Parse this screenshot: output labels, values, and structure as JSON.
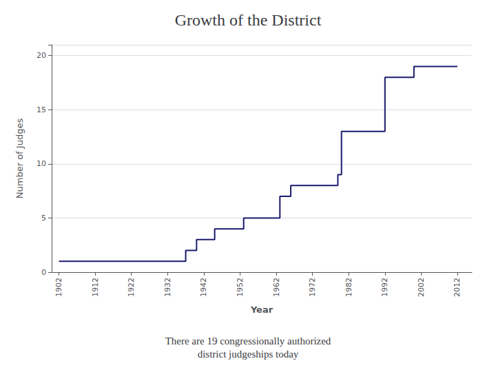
{
  "chart_data": {
    "type": "step",
    "title": "Growth of the District",
    "subtitle": "There are 19 congressionally authorized\ndistrict judgeships today",
    "xlabel": "Year",
    "ylabel": "Number of Judges",
    "x": [
      1902,
      1937,
      1940,
      1945,
      1949,
      1953,
      1961,
      1963,
      1966,
      1979,
      1980,
      1990,
      1992,
      2000,
      2012
    ],
    "values": [
      1,
      2,
      3,
      4,
      4,
      5,
      5,
      7,
      8,
      9,
      13,
      13,
      18,
      19,
      19
    ],
    "color": "#1a1a6e",
    "xlim": [
      1900,
      2016
    ],
    "ylim": [
      0,
      21
    ],
    "xticks": [
      1902,
      1912,
      1922,
      1932,
      1942,
      1952,
      1962,
      1972,
      1982,
      1992,
      2002,
      2012
    ],
    "yticks": [
      0,
      5,
      10,
      15,
      20
    ],
    "grid": true
  }
}
